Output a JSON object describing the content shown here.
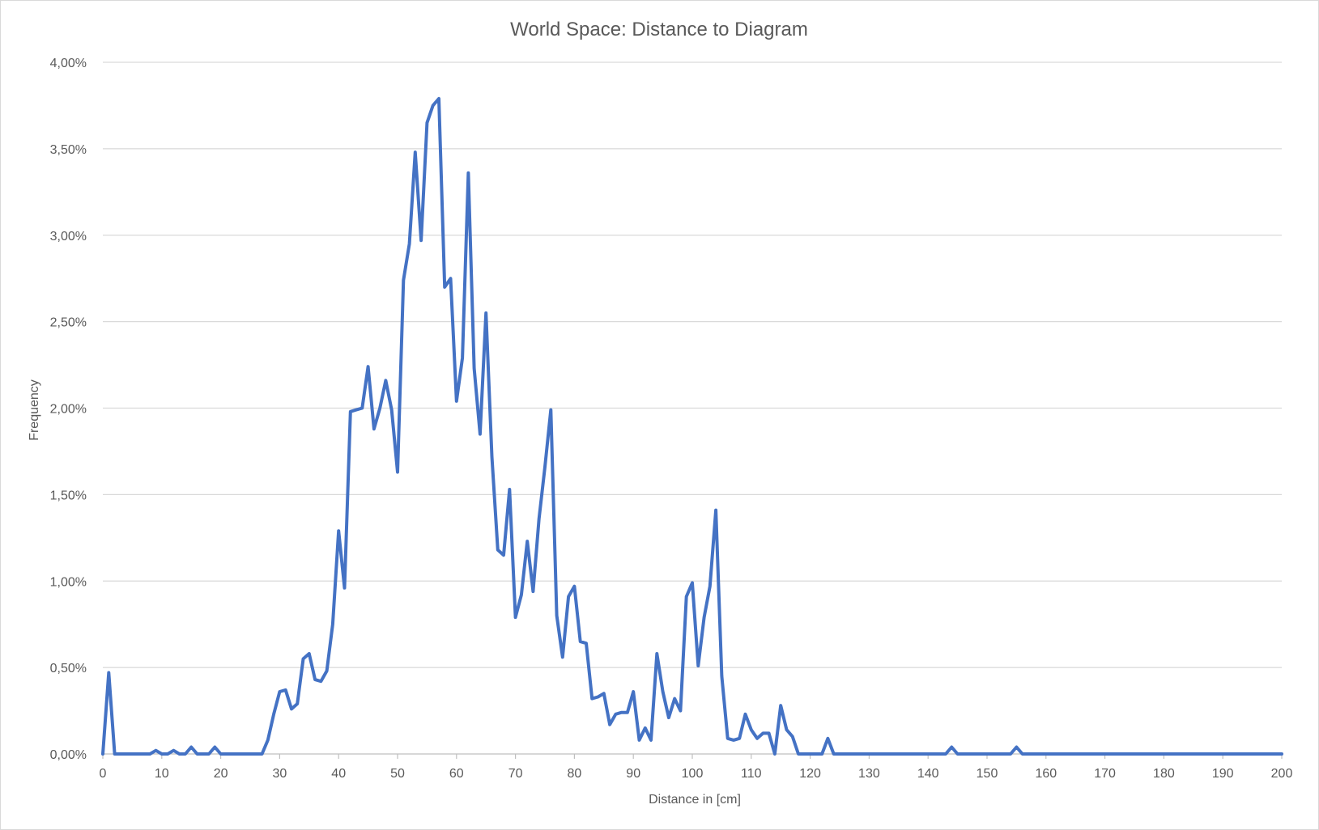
{
  "chart_data": {
    "type": "line",
    "title": "World Space: Distance to Diagram",
    "xlabel": "Distance in [cm]",
    "ylabel": "Frequency",
    "xlim": [
      0,
      200
    ],
    "ylim": [
      0,
      4.0
    ],
    "x_ticks": [
      "0",
      "10",
      "20",
      "30",
      "40",
      "50",
      "60",
      "70",
      "80",
      "90",
      "100",
      "110",
      "120",
      "130",
      "140",
      "150",
      "160",
      "170",
      "180",
      "190",
      "200"
    ],
    "y_ticks": [
      "0,00%",
      "0,50%",
      "1,00%",
      "1,50%",
      "2,00%",
      "2,50%",
      "3,00%",
      "3,50%",
      "4,00%"
    ],
    "grid": "horizontal",
    "legend": "none",
    "series": [
      {
        "color": "#4472C4",
        "x": [
          0,
          1,
          2,
          3,
          4,
          5,
          6,
          7,
          8,
          9,
          10,
          11,
          12,
          13,
          14,
          15,
          16,
          17,
          18,
          19,
          20,
          21,
          22,
          23,
          24,
          25,
          26,
          27,
          28,
          29,
          30,
          31,
          32,
          33,
          34,
          35,
          36,
          37,
          38,
          39,
          40,
          41,
          42,
          43,
          44,
          45,
          46,
          47,
          48,
          49,
          50,
          51,
          52,
          53,
          54,
          55,
          56,
          57,
          58,
          59,
          60,
          61,
          62,
          63,
          64,
          65,
          66,
          67,
          68,
          69,
          70,
          71,
          72,
          73,
          74,
          75,
          76,
          77,
          78,
          79,
          80,
          81,
          82,
          83,
          84,
          85,
          86,
          87,
          88,
          89,
          90,
          91,
          92,
          93,
          94,
          95,
          96,
          97,
          98,
          99,
          100,
          101,
          102,
          103,
          104,
          105,
          106,
          107,
          108,
          109,
          110,
          111,
          112,
          113,
          114,
          115,
          116,
          117,
          118,
          119,
          120,
          121,
          122,
          123,
          124,
          125,
          130,
          140,
          143,
          144,
          145,
          150,
          154,
          155,
          156,
          160,
          170,
          180,
          190,
          200
        ],
        "values": [
          0,
          0.47,
          0,
          0,
          0,
          0,
          0,
          0,
          0,
          0.02,
          0,
          0,
          0.02,
          0,
          0,
          0.04,
          0,
          0,
          0,
          0.04,
          0,
          0,
          0,
          0,
          0,
          0,
          0,
          0,
          0.08,
          0.23,
          0.36,
          0.37,
          0.26,
          0.29,
          0.55,
          0.58,
          0.43,
          0.42,
          0.48,
          0.75,
          1.29,
          0.96,
          1.98,
          1.99,
          2.0,
          2.24,
          1.88,
          2.0,
          2.16,
          1.99,
          1.63,
          2.74,
          2.95,
          3.48,
          2.97,
          3.65,
          3.75,
          3.79,
          2.7,
          2.75,
          2.04,
          2.29,
          3.36,
          2.23,
          1.85,
          2.55,
          1.72,
          1.18,
          1.15,
          1.53,
          0.79,
          0.92,
          1.23,
          0.94,
          1.36,
          1.66,
          1.99,
          0.8,
          0.56,
          0.91,
          0.97,
          0.65,
          0.64,
          0.32,
          0.33,
          0.35,
          0.17,
          0.23,
          0.24,
          0.24,
          0.36,
          0.08,
          0.15,
          0.08,
          0.58,
          0.36,
          0.21,
          0.32,
          0.25,
          0.91,
          0.99,
          0.51,
          0.79,
          0.97,
          1.41,
          0.45,
          0.09,
          0.08,
          0.09,
          0.23,
          0.14,
          0.09,
          0.12,
          0.12,
          0,
          0.28,
          0.14,
          0.1,
          0,
          0,
          0,
          0,
          0,
          0.09,
          0,
          0,
          0,
          0,
          0,
          0.04,
          0,
          0,
          0,
          0.04,
          0,
          0,
          0,
          0,
          0,
          0
        ]
      }
    ]
  }
}
